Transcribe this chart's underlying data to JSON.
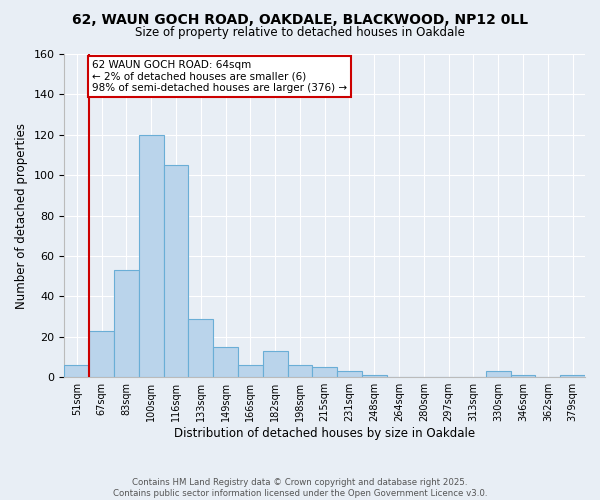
{
  "title": "62, WAUN GOCH ROAD, OAKDALE, BLACKWOOD, NP12 0LL",
  "subtitle": "Size of property relative to detached houses in Oakdale",
  "xlabel": "Distribution of detached houses by size in Oakdale",
  "ylabel": "Number of detached properties",
  "bar_labels": [
    "51sqm",
    "67sqm",
    "83sqm",
    "100sqm",
    "116sqm",
    "133sqm",
    "149sqm",
    "166sqm",
    "182sqm",
    "198sqm",
    "215sqm",
    "231sqm",
    "248sqm",
    "264sqm",
    "280sqm",
    "297sqm",
    "313sqm",
    "330sqm",
    "346sqm",
    "362sqm",
    "379sqm"
  ],
  "bar_values": [
    6,
    23,
    53,
    120,
    105,
    29,
    15,
    6,
    13,
    6,
    5,
    3,
    1,
    0,
    0,
    0,
    0,
    3,
    1,
    0,
    1
  ],
  "bar_color": "#bad4eb",
  "bar_edge_color": "#6aaed6",
  "background_color": "#e8eef5",
  "ylim": [
    0,
    160
  ],
  "yticks": [
    0,
    20,
    40,
    60,
    80,
    100,
    120,
    140,
    160
  ],
  "annotation_title": "62 WAUN GOCH ROAD: 64sqm",
  "annotation_line1": "← 2% of detached houses are smaller (6)",
  "annotation_line2": "98% of semi-detached houses are larger (376) →",
  "annotation_box_color": "#ffffff",
  "annotation_border_color": "#cc0000",
  "red_line_color": "#cc0000",
  "footer1": "Contains HM Land Registry data © Crown copyright and database right 2025.",
  "footer2": "Contains public sector information licensed under the Open Government Licence v3.0."
}
